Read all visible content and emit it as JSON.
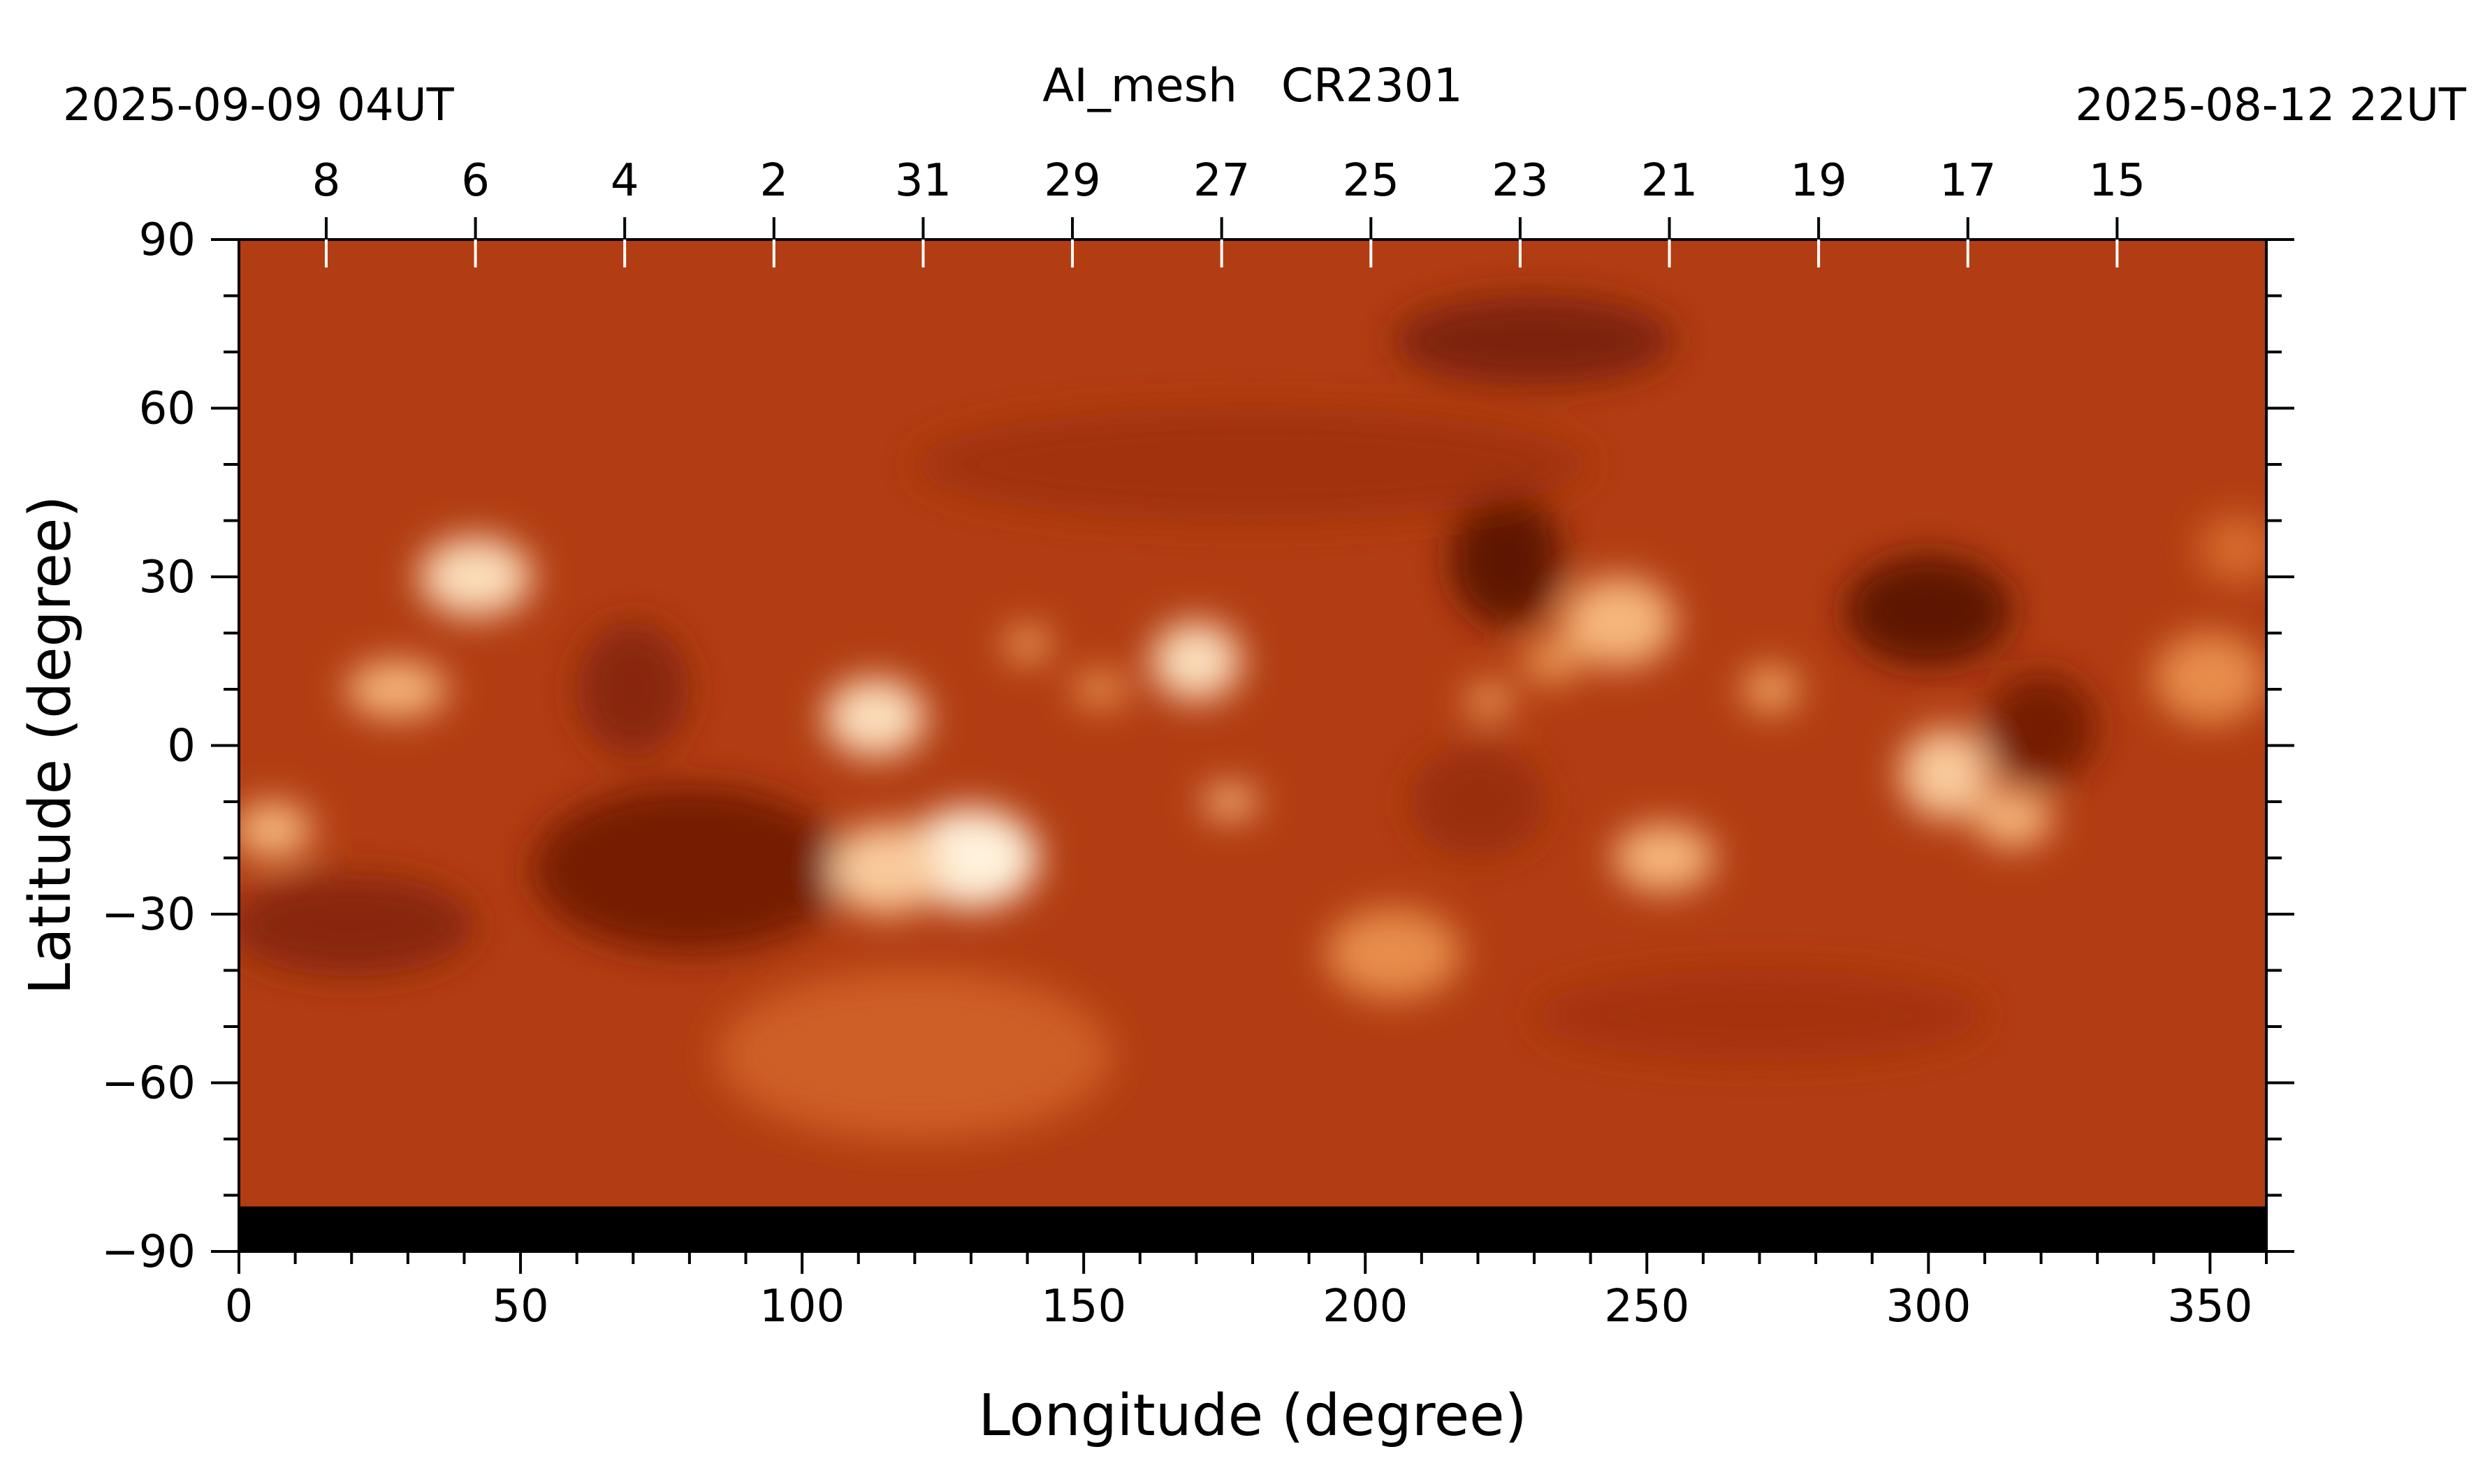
{
  "chart_data": {
    "type": "heatmap",
    "title": "AI_mesh   CR2301",
    "date_left": "2025-09-09 04UT",
    "date_right": "2025-08-12 22UT",
    "xlabel": "Longitude (degree)",
    "ylabel": "Latitude (degree)",
    "xlim": [
      0,
      360
    ],
    "ylim": [
      -90,
      90
    ],
    "x_ticks": [
      0,
      50,
      100,
      150,
      200,
      250,
      300,
      350
    ],
    "y_ticks": [
      90,
      60,
      30,
      0,
      -30,
      -60,
      -90
    ],
    "top_axis_ticks": [
      {
        "label": "8",
        "lon": 15.5
      },
      {
        "label": "6",
        "lon": 42
      },
      {
        "label": "4",
        "lon": 68.5
      },
      {
        "label": "2",
        "lon": 95
      },
      {
        "label": "31",
        "lon": 121.5
      },
      {
        "label": "29",
        "lon": 148
      },
      {
        "label": "27",
        "lon": 174.5
      },
      {
        "label": "25",
        "lon": 201
      },
      {
        "label": "23",
        "lon": 227.5
      },
      {
        "label": "21",
        "lon": 254
      },
      {
        "label": "19",
        "lon": 280.5
      },
      {
        "label": "17",
        "lon": 307
      },
      {
        "label": "15",
        "lon": 333.5
      }
    ],
    "colormap": [
      "#000000",
      "#6a1a04",
      "#a5330d",
      "#c6521c",
      "#e07d3a",
      "#f5b070",
      "#fff2dc"
    ],
    "no_data_band": {
      "lat_min": -90,
      "lat_max": -82
    },
    "bright_regions": [
      {
        "lon": 42,
        "lat": 30,
        "rlon": 10,
        "rlat": 7,
        "level": 0.95
      },
      {
        "lon": 28,
        "lat": 10,
        "rlon": 9,
        "rlat": 5,
        "level": 0.85
      },
      {
        "lon": 6,
        "lat": -15,
        "rlon": 7,
        "rlat": 5,
        "level": 0.85
      },
      {
        "lon": 113,
        "lat": 5,
        "rlon": 9,
        "rlat": 7,
        "level": 0.95
      },
      {
        "lon": 130,
        "lat": -20,
        "rlon": 12,
        "rlat": 9,
        "level": 1.0
      },
      {
        "lon": 115,
        "lat": -22,
        "rlon": 10,
        "rlat": 8,
        "level": 0.9
      },
      {
        "lon": 140,
        "lat": 18,
        "rlon": 4,
        "rlat": 3,
        "level": 0.8
      },
      {
        "lon": 153,
        "lat": 10,
        "rlon": 5,
        "rlat": 3,
        "level": 0.75
      },
      {
        "lon": 170,
        "lat": 15,
        "rlon": 8,
        "rlat": 7,
        "level": 0.95
      },
      {
        "lon": 176,
        "lat": -10,
        "rlon": 5,
        "rlat": 3,
        "level": 0.85
      },
      {
        "lon": 205,
        "lat": -37,
        "rlon": 12,
        "rlat": 8,
        "level": 0.72
      },
      {
        "lon": 222,
        "lat": 8,
        "rlon": 4,
        "rlat": 3,
        "level": 0.8
      },
      {
        "lon": 245,
        "lat": 22,
        "rlon": 10,
        "rlat": 8,
        "level": 0.85
      },
      {
        "lon": 233,
        "lat": 15,
        "rlon": 5,
        "rlat": 4,
        "level": 0.75
      },
      {
        "lon": 253,
        "lat": -20,
        "rlon": 9,
        "rlat": 6,
        "level": 0.85
      },
      {
        "lon": 272,
        "lat": 10,
        "rlon": 5,
        "rlat": 4,
        "level": 0.8
      },
      {
        "lon": 303,
        "lat": -5,
        "rlon": 8,
        "rlat": 8,
        "level": 0.9
      },
      {
        "lon": 315,
        "lat": -13,
        "rlon": 7,
        "rlat": 5,
        "level": 0.85
      },
      {
        "lon": 350,
        "lat": 12,
        "rlon": 10,
        "rlat": 8,
        "level": 0.72
      },
      {
        "lon": 355,
        "lat": 35,
        "rlon": 7,
        "rlat": 6,
        "level": 0.6
      },
      {
        "lon": 120,
        "lat": -55,
        "rlon": 35,
        "rlat": 15,
        "level": 0.55
      }
    ],
    "dark_regions": [
      {
        "lon": 80,
        "lat": -22,
        "rlon": 28,
        "rlat": 15,
        "level": 0.2
      },
      {
        "lon": 20,
        "lat": -32,
        "rlon": 22,
        "rlat": 9,
        "level": 0.25
      },
      {
        "lon": 70,
        "lat": 10,
        "rlon": 10,
        "rlat": 12,
        "level": 0.25
      },
      {
        "lon": 225,
        "lat": 33,
        "rlon": 10,
        "rlat": 12,
        "level": 0.15
      },
      {
        "lon": 230,
        "lat": 72,
        "rlon": 25,
        "rlat": 8,
        "level": 0.22
      },
      {
        "lon": 300,
        "lat": 24,
        "rlon": 15,
        "rlat": 10,
        "level": 0.15
      },
      {
        "lon": 320,
        "lat": 3,
        "rlon": 10,
        "rlat": 10,
        "level": 0.2
      },
      {
        "lon": 220,
        "lat": -10,
        "rlon": 12,
        "rlat": 10,
        "level": 0.3
      },
      {
        "lon": 270,
        "lat": -48,
        "rlon": 40,
        "rlat": 8,
        "level": 0.33
      },
      {
        "lon": 180,
        "lat": 50,
        "rlon": 60,
        "rlat": 10,
        "level": 0.32
      }
    ]
  }
}
